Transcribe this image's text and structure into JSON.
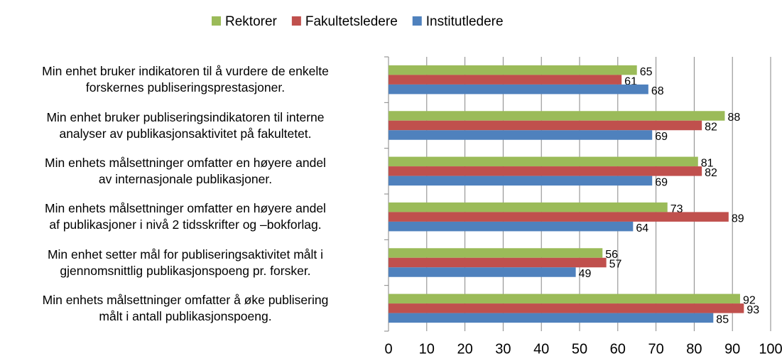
{
  "chart_data": {
    "type": "bar",
    "orientation": "horizontal",
    "categories": [
      "Min enhet bruker indikatoren til å vurdere de enkelte\nforskernes publiseringsprestasjoner.",
      "Min enhet bruker publiseringsindikatoren til interne\nanalyser av publikasjonsaktivitet på fakultetet.",
      "Min enhets målsettninger omfatter en høyere andel\nav internasjonale publikasjoner.",
      "Min enhets målsettninger omfatter en høyere andel\naf publikasjoner i nivå 2 tidsskrifter og –bokforlag.",
      "Min enhet setter mål for publiseringsaktivitet målt i\ngjennomsnittlig publikasjonspoeng pr. forsker.",
      "Min enhets målsettninger omfatter å øke publisering\nmålt i antall publikasjonspoeng."
    ],
    "series": [
      {
        "name": "Rektorer",
        "color": "#9bbb59",
        "values": [
          65,
          88,
          81,
          73,
          56,
          92
        ]
      },
      {
        "name": "Fakultetsledere",
        "color": "#c0504d",
        "values": [
          61,
          82,
          82,
          89,
          57,
          93
        ]
      },
      {
        "name": "Institutledere",
        "color": "#4f81bd",
        "values": [
          68,
          69,
          69,
          64,
          49,
          85
        ]
      }
    ],
    "xlim": [
      0,
      100
    ],
    "xticks": [
      0,
      10,
      20,
      30,
      40,
      50,
      60,
      70,
      80,
      90,
      100
    ],
    "grid": true,
    "legend": "top",
    "data_labels": true
  }
}
